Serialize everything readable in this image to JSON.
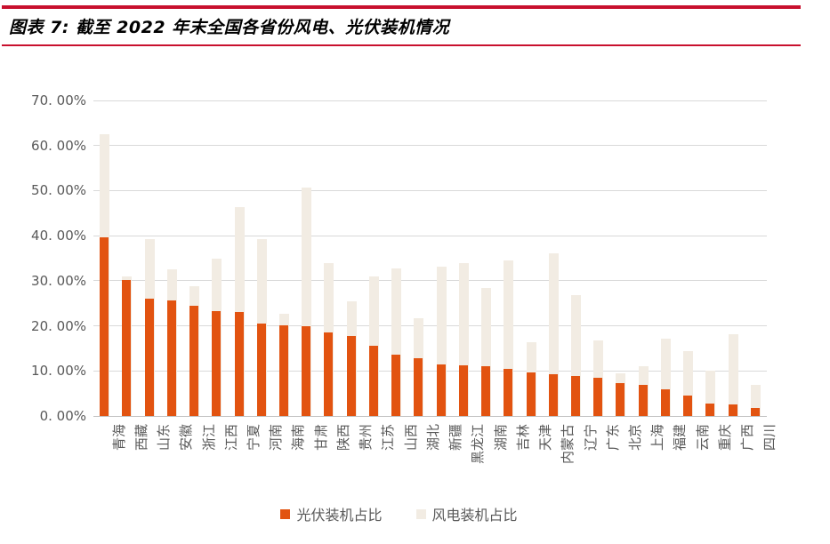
{
  "title": {
    "label": "图表 7: 截至 2022 年末全国各省份风电、光伏装机情况"
  },
  "colors": {
    "accent_rule": "#C8102E",
    "pv_orange": "#E25310",
    "wind_beige": "#F2ECE3",
    "gridline": "#D9D9D9",
    "axis_text": "#595959"
  },
  "chart_data": {
    "type": "bar",
    "title": "截至 2022 年末全国各省份风电、光伏装机情况",
    "categories": [
      "青海",
      "西藏",
      "山东",
      "安徽",
      "浙江",
      "江西",
      "宁夏",
      "河南",
      "海南",
      "甘肃",
      "陕西",
      "贵州",
      "江苏",
      "山西",
      "湖北",
      "新疆",
      "黑龙江",
      "湖南",
      "吉林",
      "天津",
      "内蒙古",
      "辽宁",
      "广东",
      "北京",
      "上海",
      "福建",
      "云南",
      "重庆",
      "广西",
      "四川"
    ],
    "series": [
      {
        "name": "光伏装机占比",
        "color": "#E25310",
        "values": [
          39.7,
          30.2,
          26.1,
          25.6,
          24.4,
          23.2,
          23.0,
          20.6,
          20.2,
          20.0,
          18.5,
          17.8,
          15.6,
          13.6,
          12.9,
          11.5,
          11.2,
          11.0,
          10.4,
          9.6,
          9.2,
          8.8,
          8.5,
          7.3,
          6.9,
          5.9,
          4.6,
          2.7,
          2.6,
          1.8
        ]
      },
      {
        "name": "风电装机占比",
        "color": "#F2ECE3",
        "values": [
          62.6,
          30.9,
          39.3,
          32.5,
          28.8,
          35.0,
          46.4,
          39.2,
          22.7,
          50.6,
          34.0,
          25.5,
          31.0,
          32.8,
          21.6,
          33.2,
          33.9,
          28.4,
          34.6,
          16.3,
          36.1,
          26.8,
          16.8,
          9.4,
          11.0,
          17.1,
          14.3,
          10.0,
          18.2,
          7.0
        ]
      }
    ],
    "yticks": [
      "0. 00%",
      "10. 00%",
      "20. 00%",
      "30. 00%",
      "40. 00%",
      "50. 00%",
      "60. 00%",
      "70. 00%"
    ],
    "ylim": [
      0,
      70
    ],
    "xlabel": "",
    "ylabel": "",
    "grid": true,
    "bar_overlap": "100%",
    "legend_position": "bottom"
  }
}
